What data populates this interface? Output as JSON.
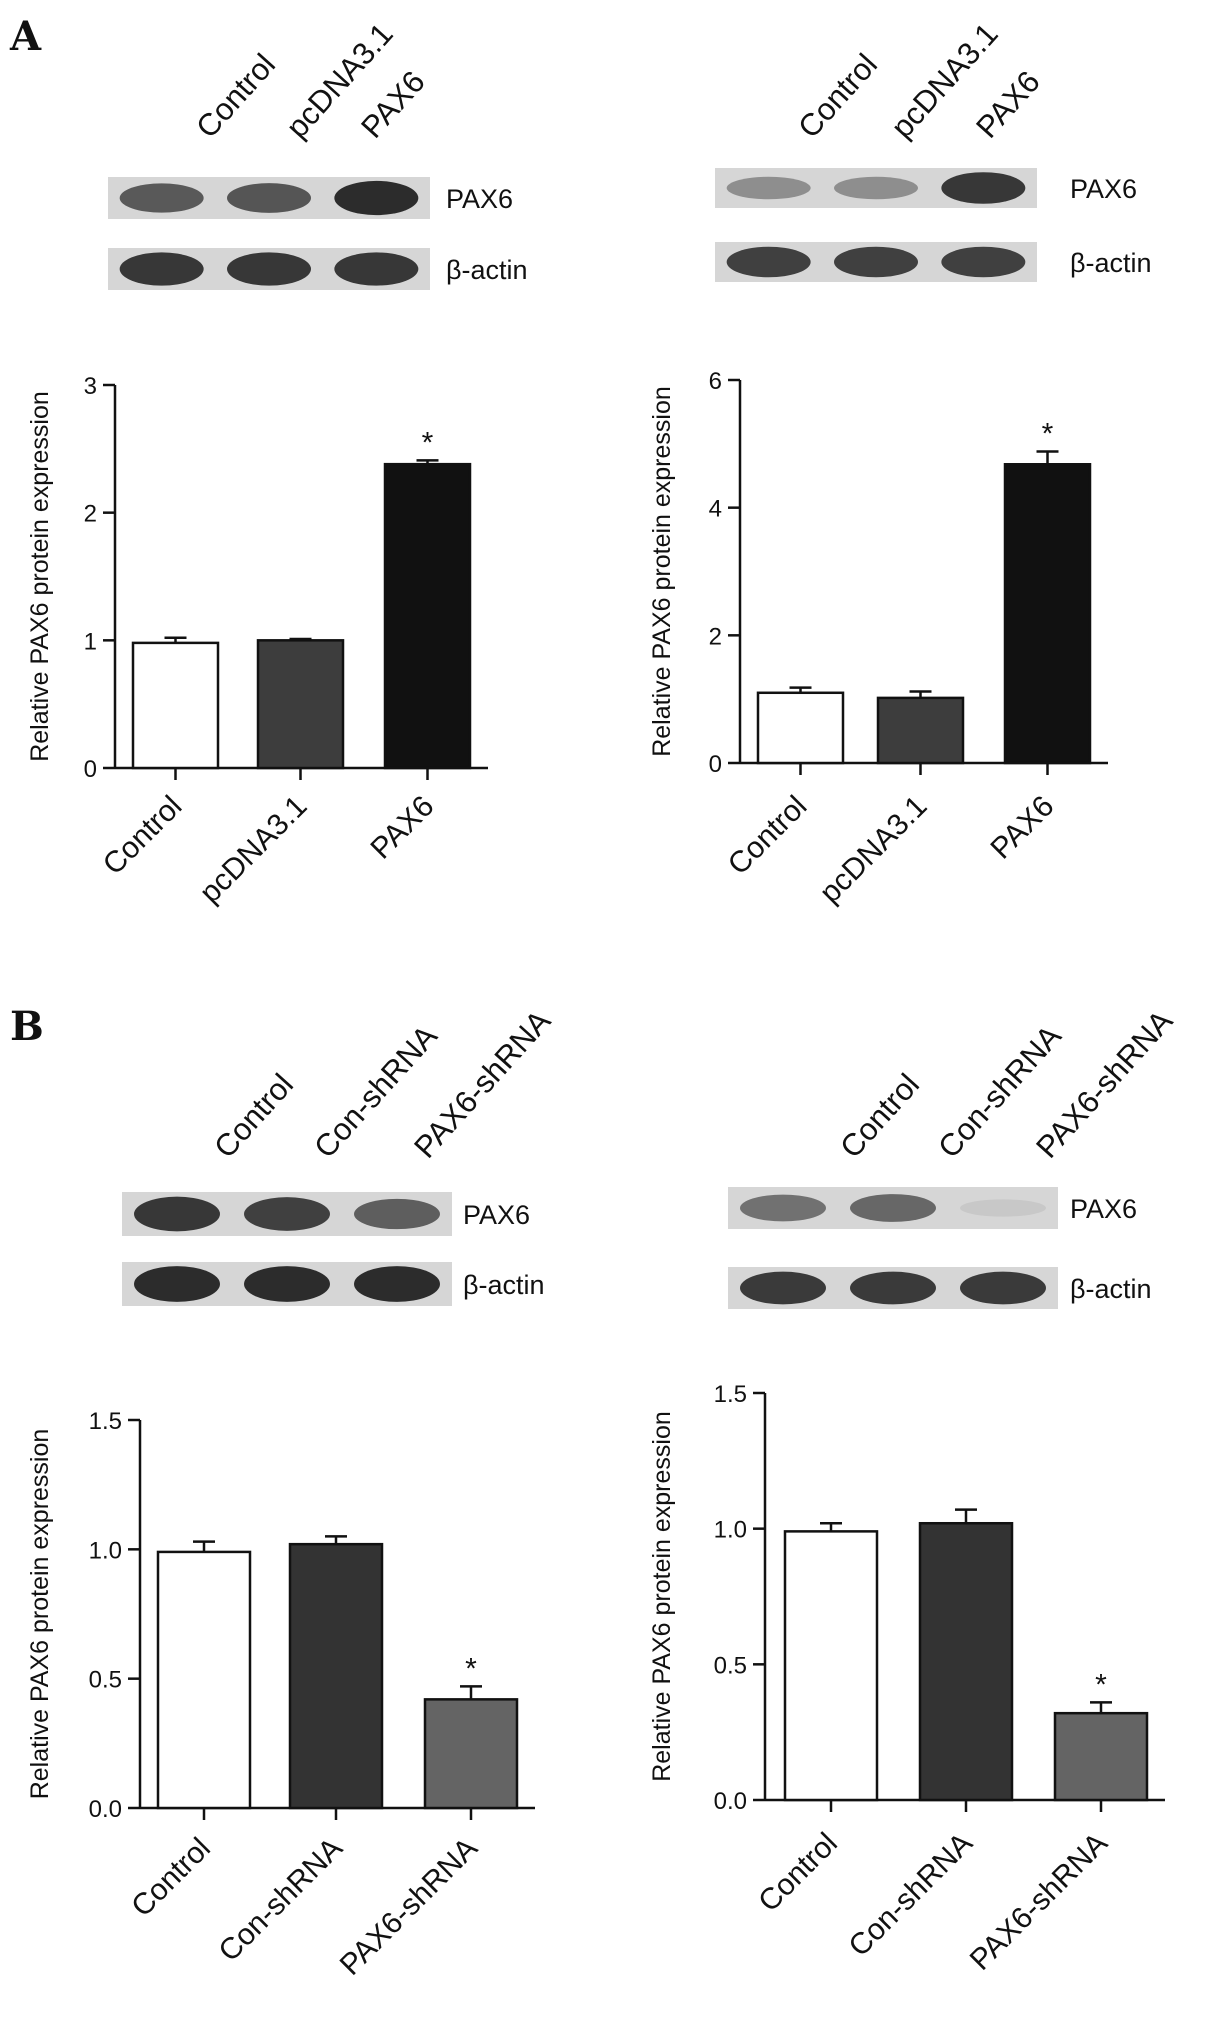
{
  "panels": [
    {
      "letter": "A",
      "blot": {
        "lanes": [
          "Control",
          "pcDNA3.1",
          "PAX6"
        ],
        "rows": [
          {
            "label": "PAX6",
            "intensities": [
              0.72,
              0.74,
              0.95
            ]
          },
          {
            "label": "β-actin",
            "intensities": [
              0.9,
              0.9,
              0.9
            ]
          }
        ]
      },
      "blot2": {
        "lanes": [
          "Control",
          "pcDNA3.1",
          "PAX6"
        ],
        "rows": [
          {
            "label": "PAX6",
            "intensities": [
              0.45,
              0.45,
              0.9
            ]
          },
          {
            "label": "β-actin",
            "intensities": [
              0.85,
              0.85,
              0.85
            ]
          }
        ]
      }
    },
    {
      "letter": "B",
      "blot": {
        "lanes": [
          "Control",
          "Con-shRNA",
          "PAX6-shRNA"
        ],
        "rows": [
          {
            "label": "PAX6",
            "intensities": [
              0.9,
              0.85,
              0.7
            ]
          },
          {
            "label": "β-actin",
            "intensities": [
              0.95,
              0.95,
              0.95
            ]
          }
        ]
      },
      "blot2": {
        "lanes": [
          "Control",
          "Con-shRNA",
          "PAX6-shRNA"
        ],
        "rows": [
          {
            "label": "PAX6",
            "intensities": [
              0.6,
              0.65,
              0.15
            ]
          },
          {
            "label": "β-actin",
            "intensities": [
              0.88,
              0.88,
              0.88
            ]
          }
        ]
      }
    }
  ],
  "chart_data": [
    {
      "type": "bar",
      "panel": "A",
      "position": "left",
      "categories": [
        "Control",
        "pcDNA3.1",
        "PAX6"
      ],
      "values": [
        0.98,
        1.0,
        2.38
      ],
      "errors": [
        0.04,
        0.01,
        0.03
      ],
      "significance": [
        "",
        "",
        "*"
      ],
      "bar_colors": [
        "#ffffff",
        "#3d3d3d",
        "#111111"
      ],
      "ylabel": "Relative PAX6 protein expression",
      "ylim": [
        0,
        3
      ],
      "yticks": [
        0,
        1,
        2,
        3
      ],
      "ytick_labels": [
        "0",
        "1",
        "2",
        "3"
      ]
    },
    {
      "type": "bar",
      "panel": "A",
      "position": "right",
      "categories": [
        "Control",
        "pcDNA3.1",
        "PAX6"
      ],
      "values": [
        1.1,
        1.02,
        4.68
      ],
      "errors": [
        0.08,
        0.1,
        0.2
      ],
      "significance": [
        "",
        "",
        "*"
      ],
      "bar_colors": [
        "#ffffff",
        "#3d3d3d",
        "#111111"
      ],
      "ylabel": "Relative PAX6 protein expression",
      "ylim": [
        0,
        6
      ],
      "yticks": [
        0,
        2,
        4,
        6
      ],
      "ytick_labels": [
        "0",
        "2",
        "4",
        "6"
      ]
    },
    {
      "type": "bar",
      "panel": "B",
      "position": "left",
      "categories": [
        "Control",
        "Con-shRNA",
        "PAX6-shRNA"
      ],
      "values": [
        0.99,
        1.02,
        0.42
      ],
      "errors": [
        0.04,
        0.03,
        0.05
      ],
      "significance": [
        "",
        "",
        "*"
      ],
      "bar_colors": [
        "#ffffff",
        "#333333",
        "#646464"
      ],
      "ylabel": "Relative PAX6 protein expression",
      "ylim": [
        0,
        1.5
      ],
      "yticks": [
        0,
        0.5,
        1.0,
        1.5
      ],
      "ytick_labels": [
        "0.0",
        "0.5",
        "1.0",
        "1.5"
      ]
    },
    {
      "type": "bar",
      "panel": "B",
      "position": "right",
      "categories": [
        "Control",
        "Con-shRNA",
        "PAX6-shRNA"
      ],
      "values": [
        0.99,
        1.02,
        0.32
      ],
      "errors": [
        0.03,
        0.05,
        0.04
      ],
      "significance": [
        "",
        "",
        "*"
      ],
      "bar_colors": [
        "#ffffff",
        "#333333",
        "#646464"
      ],
      "ylabel": "Relative PAX6 protein expression",
      "ylim": [
        0,
        1.5
      ],
      "yticks": [
        0,
        0.5,
        1.0,
        1.5
      ],
      "ytick_labels": [
        "0.0",
        "0.5",
        "1.0",
        "1.5"
      ]
    }
  ]
}
